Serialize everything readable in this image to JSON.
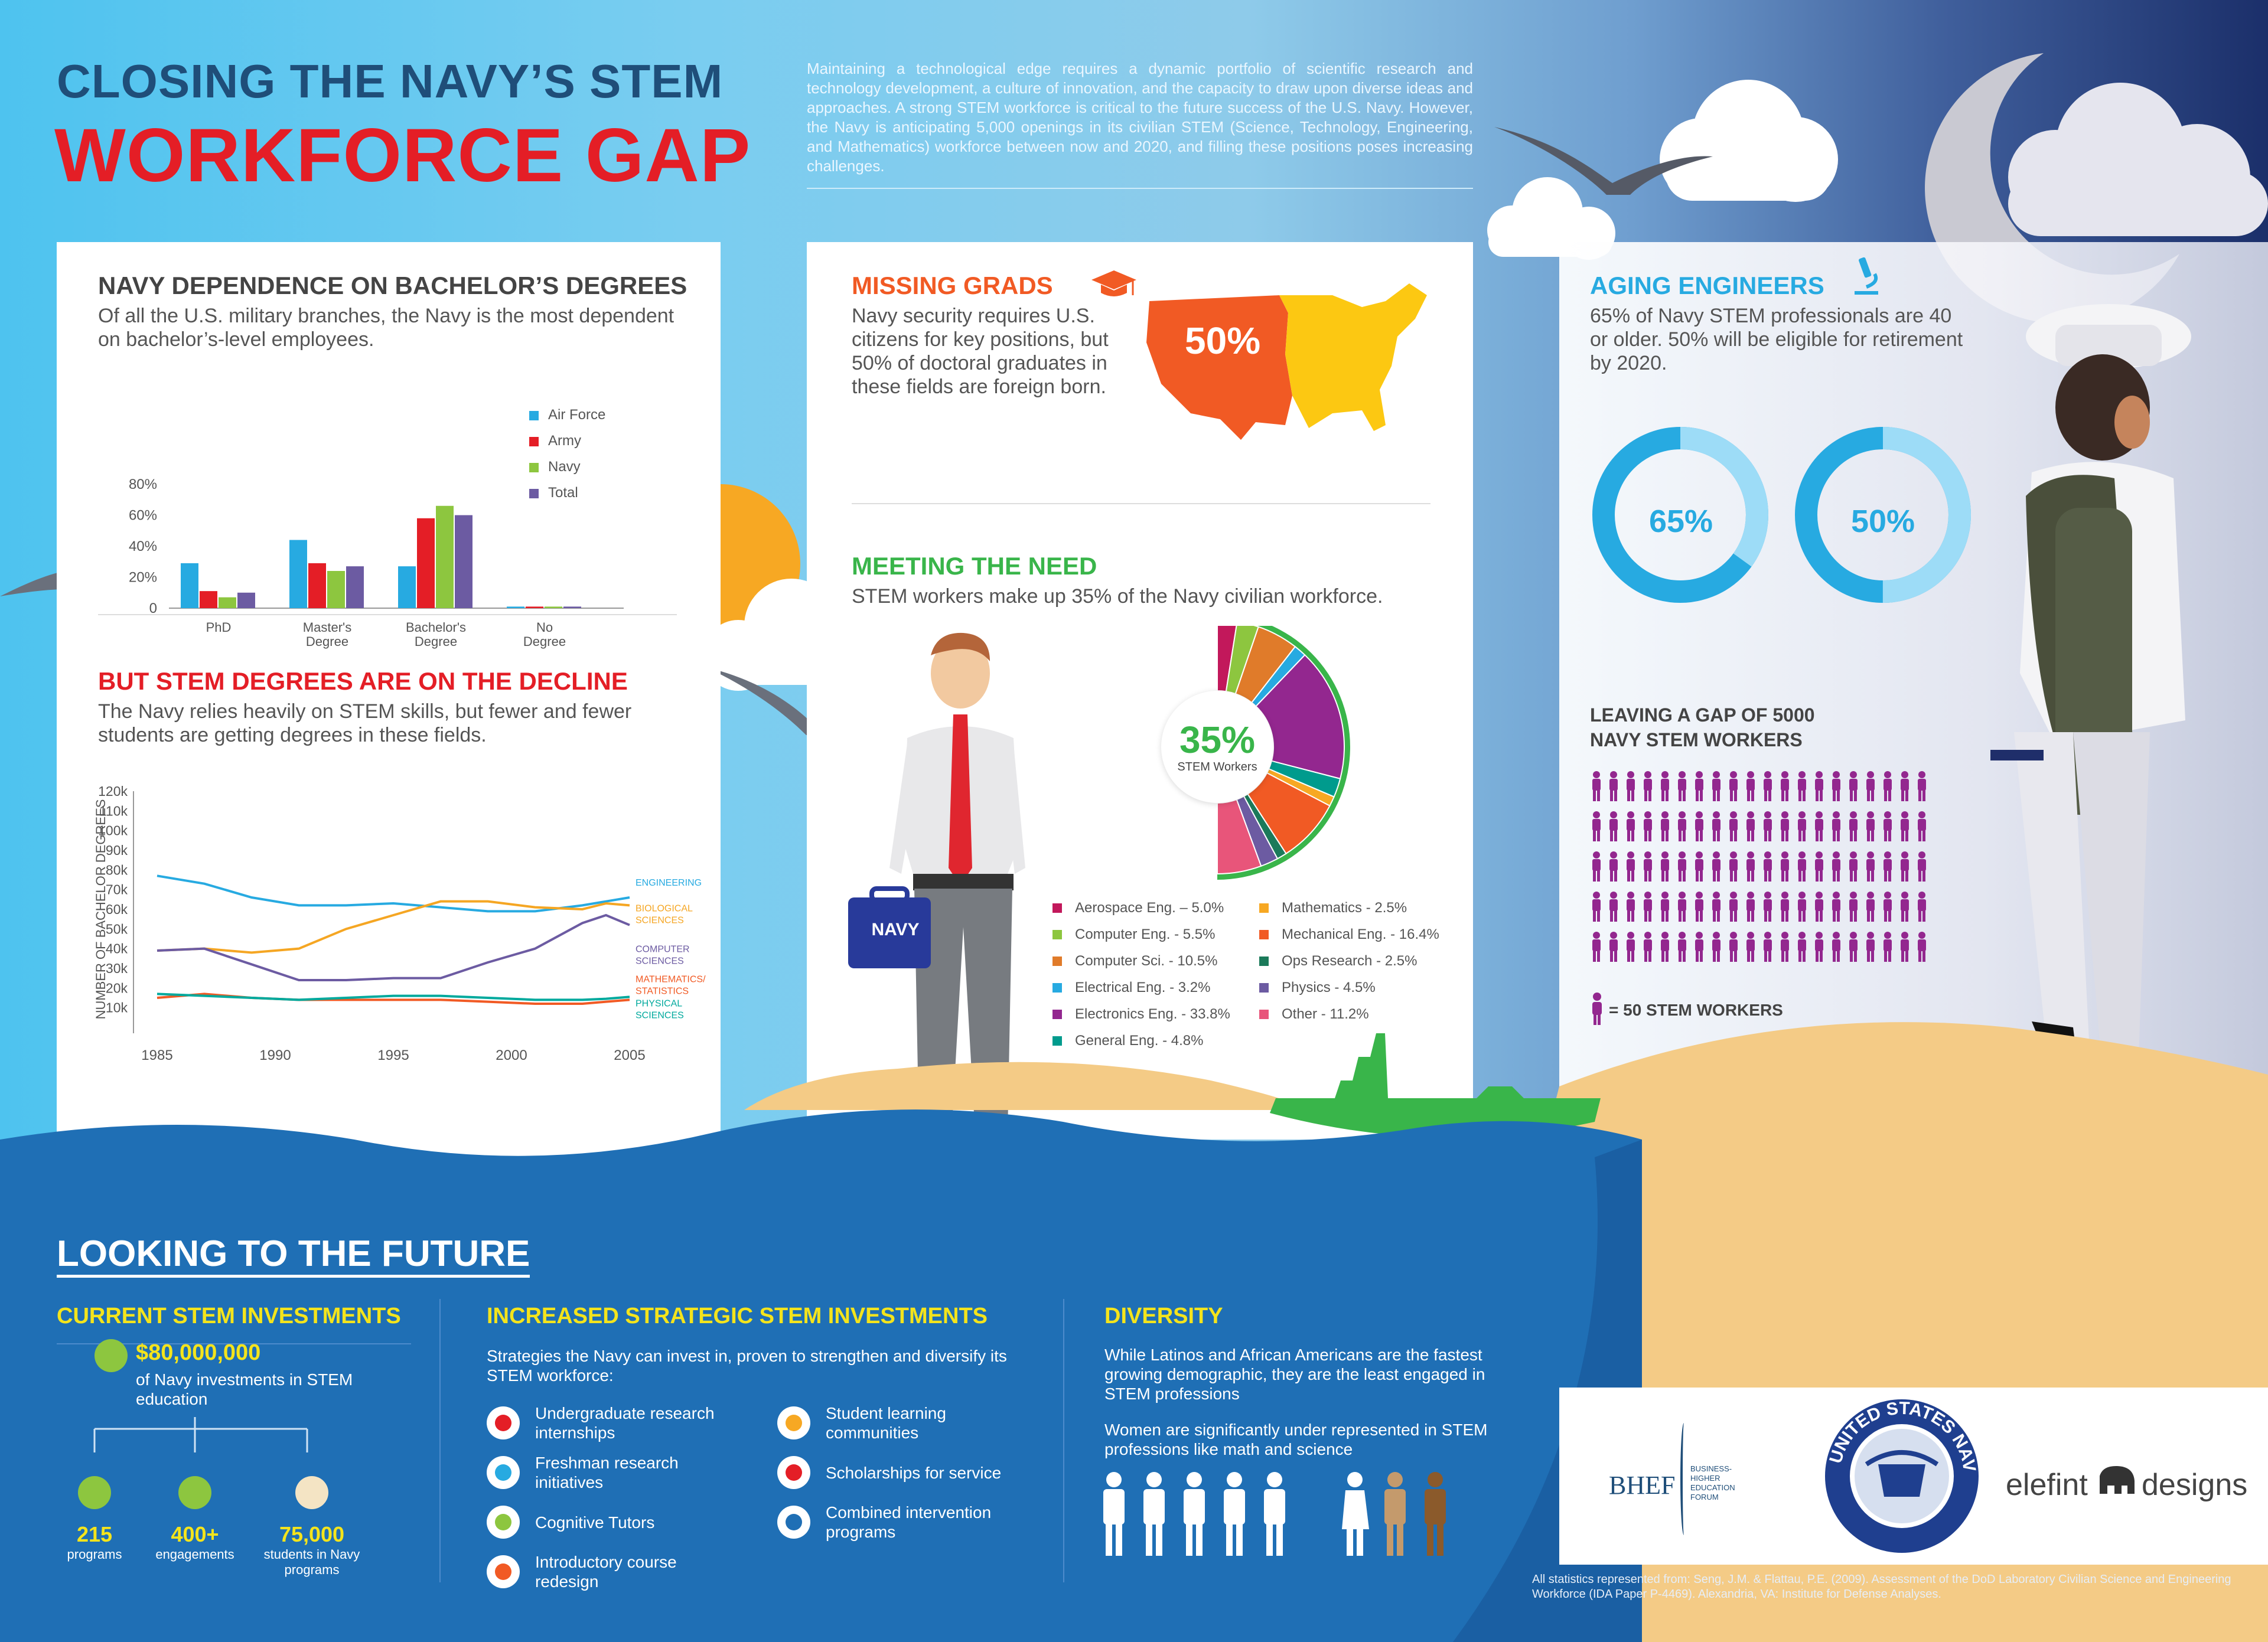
{
  "title": {
    "line1": "CLOSING THE NAVY’S STEM",
    "line2": "WORKFORCE GAP"
  },
  "intro": "Maintaining a technological edge requires a dynamic portfolio of scientific research and technology development, a culture of innovation, and the capacity to draw upon diverse ideas and approaches. A strong STEM workforce is critical to the future success of the U.S. Navy.  However, the Navy is anticipating 5,000 openings in its civilian STEM (Science, Technology, Engineering, and Mathematics) workforce between now and 2020, and filling these positions poses increasing challenges.",
  "bachelors": {
    "heading": "NAVY DEPENDENCE ON BACHELOR’S DEGREES",
    "text": "Of all the U.S. military branches, the Navy is the most dependent on bachelor’s-level employees."
  },
  "decline": {
    "heading": "BUT STEM DEGREES ARE ON THE DECLINE",
    "text": "The Navy relies heavily on STEM skills, but fewer and fewer students are getting degrees in these fields."
  },
  "missing": {
    "heading": "MISSING GRADS",
    "text": "Navy security requires U.S. citizens for key positions, but 50% of doctoral graduates in these fields are foreign born.",
    "map_value": "50%"
  },
  "meeting": {
    "heading": "MEETING THE NEED",
    "text": "STEM workers make up 35% of the Navy civilian workforce.",
    "big": "35%",
    "small": "STEM Workers",
    "bag_label": "NAVY"
  },
  "aging": {
    "heading": "AGING ENGINEERS",
    "text": "65% of Navy STEM professionals are 40 or older. 50% will be eligible for retirement by 2020.",
    "donut1": "65%",
    "donut2": "50%",
    "donut1_value": 0.65,
    "donut2_value": 0.5,
    "gap_line1": "LEAVING A GAP OF 5000",
    "gap_line2": "NAVY STEM WORKERS",
    "key": "= 50 STEM WORKERS"
  },
  "future": {
    "heading": "LOOKING TO THE FUTURE",
    "current": {
      "heading": "CURRENT STEM INVESTMENTS",
      "amount": "$80,000,000",
      "amount_text": "of Navy investments in STEM education",
      "stats": [
        {
          "value": "215",
          "label": "programs"
        },
        {
          "value": "400+",
          "label": "engagements"
        },
        {
          "value": "75,000",
          "label": "students in Navy programs"
        }
      ]
    },
    "increased": {
      "heading": "INCREASED STRATEGIC STEM INVESTMENTS",
      "text": "Strategies the Navy can invest in, proven to strengthen and diversify its STEM workforce:",
      "items_left": [
        "Undergraduate research internships",
        "Freshman research initiatives",
        "Cognitive Tutors",
        "Introductory course redesign"
      ],
      "items_right": [
        "Student learning communities",
        "Scholarships for service",
        "Combined intervention programs"
      ]
    },
    "diversity": {
      "heading": "DIVERSITY",
      "text1": "While Latinos and African Americans are the fastest growing demographic, they are the least engaged in STEM professions",
      "text2": "Women are significantly under represented in STEM professions like math and science"
    }
  },
  "logos": {
    "bhef": "BHEF",
    "bhef_sub": "BUSINESS-HIGHER EDUCATION FORUM",
    "navy_ring": "UNITED STATES NAVY",
    "elefint": "elefint",
    "designs": "designs"
  },
  "source": "All statistics represented from: Seng, J.M. & Flattau, P.E. (2009). Assessment of the DoD Laboratory Civilian Science and Engineering Workforce (IDA Paper P-4469).  Alexandria, VA: Institute for Defense Analyses.",
  "colors": {
    "air_force": "#27aae1",
    "army": "#e41e26",
    "navy": "#8dc63f",
    "total": "#6c5ba2"
  },
  "chart_data": [
    {
      "type": "bar",
      "categories": [
        "PhD",
        "Master's Degree",
        "Bachelor's Degree",
        "No Degree"
      ],
      "yticks": [
        "80%",
        "60%",
        "40%",
        "20%",
        "0"
      ],
      "ylim": [
        0,
        80
      ],
      "series": [
        {
          "name": "Air Force",
          "values": [
            29,
            44,
            27,
            1
          ],
          "color": "#27aae1"
        },
        {
          "name": "Army",
          "values": [
            11,
            29,
            58,
            1
          ],
          "color": "#e41e26"
        },
        {
          "name": "Navy",
          "values": [
            7,
            24,
            66,
            1
          ],
          "color": "#8dc63f"
        },
        {
          "name": "Total",
          "values": [
            10,
            27,
            60,
            1
          ],
          "color": "#6c5ba2"
        }
      ]
    },
    {
      "type": "line",
      "ylabel": "NUMBER OF BACHELOR DEGREES",
      "yticks": [
        "120k",
        "110k",
        "100k",
        "90k",
        "80k",
        "70k",
        "60k",
        "50k",
        "40k",
        "30k",
        "20k",
        "10k"
      ],
      "xticks": [
        "1985",
        "1990",
        "1995",
        "2000",
        "2005"
      ],
      "ylim": [
        0,
        120000
      ],
      "x": [
        1985,
        1987,
        1989,
        1991,
        1993,
        1995,
        1997,
        1999,
        2001,
        2003,
        2004,
        2005
      ],
      "series": [
        {
          "name": "ENGINEERING",
          "color": "#27aae1",
          "values": [
            77000,
            73000,
            66000,
            62000,
            62000,
            63000,
            61000,
            59000,
            59000,
            62000,
            64000,
            66000
          ]
        },
        {
          "name": "BIOLOGICAL SCIENCES",
          "color": "#f5a623",
          "values": [
            39000,
            40000,
            38000,
            40000,
            50000,
            57000,
            64000,
            64000,
            61000,
            60000,
            63000,
            62000
          ]
        },
        {
          "name": "COMPUTER SCIENCES",
          "color": "#6c5ba2",
          "values": [
            39000,
            40000,
            32000,
            24000,
            24000,
            25000,
            25000,
            33000,
            40000,
            53000,
            57000,
            52000
          ]
        },
        {
          "name": "MATHEMATICS/ STATISTICS",
          "color": "#f15a24",
          "values": [
            15000,
            17000,
            15000,
            14000,
            14000,
            14000,
            14000,
            13000,
            12000,
            12000,
            13000,
            14000
          ]
        },
        {
          "name": "PHYSICAL SCIENCES",
          "color": "#00a99d",
          "values": [
            17000,
            16000,
            15000,
            14000,
            15000,
            16000,
            16000,
            15000,
            14000,
            14000,
            14500,
            15500
          ]
        }
      ]
    },
    {
      "type": "pie",
      "title": "",
      "values": [
        5.0,
        5.5,
        10.5,
        3.2,
        33.8,
        4.8,
        2.5,
        16.4,
        2.5,
        4.5,
        11.2
      ],
      "labels": [
        "Aerospace Eng. – 5.0%",
        "Computer Eng. - 5.5%",
        "Computer Sci. - 10.5%",
        "Electrical Eng. - 3.2%",
        "Electronics Eng. - 33.8%",
        "General Eng. - 4.8%",
        "Mathematics - 2.5%",
        "Mechanical Eng. - 16.4%",
        "Ops Research - 2.5%",
        "Physics - 4.5%",
        "Other - 11.2%"
      ],
      "colors": [
        "#c2185b",
        "#8dc63f",
        "#e07b2a",
        "#27aae1",
        "#93278f",
        "#009b8d",
        "#f7a823",
        "#f15a24",
        "#1b7a5a",
        "#6c5ba2",
        "#e8557a"
      ]
    }
  ]
}
